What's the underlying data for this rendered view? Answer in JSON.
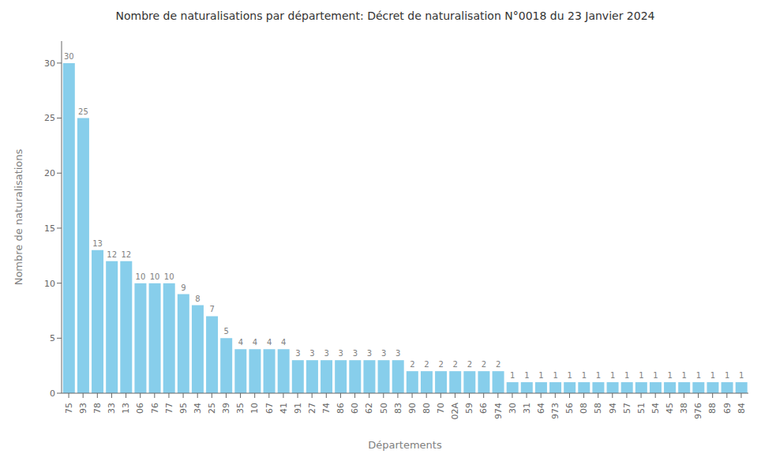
{
  "chart_data": {
    "type": "bar",
    "title": "Nombre de naturalisations par département: Décret de naturalisation N°0018 du 23 Janvier 2024",
    "xlabel": "Départements",
    "ylabel": "Nombre de naturalisations",
    "categories": [
      "75",
      "93",
      "78",
      "33",
      "13",
      "06",
      "76",
      "77",
      "95",
      "34",
      "25",
      "39",
      "35",
      "10",
      "67",
      "41",
      "91",
      "27",
      "74",
      "86",
      "60",
      "62",
      "50",
      "83",
      "90",
      "80",
      "70",
      "02A",
      "59",
      "66",
      "974",
      "30",
      "31",
      "64",
      "973",
      "56",
      "08",
      "58",
      "94",
      "57",
      "51",
      "54",
      "45",
      "38",
      "976",
      "88",
      "69",
      "84"
    ],
    "values": [
      30,
      25,
      13,
      12,
      12,
      10,
      10,
      10,
      9,
      8,
      7,
      5,
      4,
      4,
      4,
      4,
      3,
      3,
      3,
      3,
      3,
      3,
      3,
      3,
      2,
      2,
      2,
      2,
      2,
      2,
      2,
      1,
      1,
      1,
      1,
      1,
      1,
      1,
      1,
      1,
      1,
      1,
      1,
      1,
      1,
      1,
      1,
      1
    ],
    "color": "#87CEEB",
    "ylim": [
      0,
      32
    ],
    "yticks": [
      0,
      5,
      10,
      15,
      20,
      25,
      30
    ],
    "grid": false,
    "data_labels": true
  }
}
